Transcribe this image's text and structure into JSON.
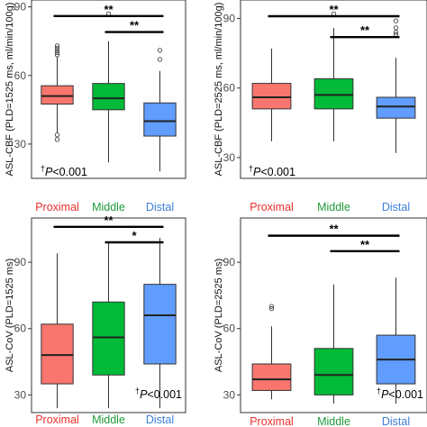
{
  "chart_data": [
    {
      "type": "box",
      "ylabel": "ASL-CBF (PLD=1525 ms, ml/min/100g)",
      "ylim": [
        15,
        93
      ],
      "yticks": [
        30,
        60,
        90
      ],
      "categories": [
        "Proximal",
        "Middle",
        "Distal"
      ],
      "category_colors": [
        "#e8302a",
        "#1e9a3a",
        "#3d7fd8"
      ],
      "box_fills": [
        "#f8766d",
        "#00ba38",
        "#619cff"
      ],
      "boxes": [
        {
          "whisker_low": 35,
          "q1": 47.5,
          "median": 51,
          "q3": 55.5,
          "whisker_high": 68,
          "outliers": [
            32,
            34,
            69,
            70,
            71,
            72,
            73
          ]
        },
        {
          "whisker_low": 22,
          "q1": 45,
          "median": 50,
          "q3": 56.5,
          "whisker_high": 75,
          "outliers": [
            87
          ]
        },
        {
          "whisker_low": 18,
          "q1": 33.5,
          "median": 40,
          "q3": 48,
          "whisker_high": 62,
          "outliers": [
            67,
            71
          ]
        }
      ],
      "significance": [
        {
          "label": "**",
          "from": 0,
          "to": 2,
          "y": 86
        },
        {
          "label": "**",
          "from": 1,
          "to": 2,
          "y": 79
        }
      ],
      "annotation": {
        "dagger": "†",
        "p": "P",
        "rest": "<0.001",
        "position": "bottom-left"
      }
    },
    {
      "type": "box",
      "ylabel": "ASL-CBF (PLD=2525 ms, ml/min/100g)",
      "ylim": [
        21,
        98
      ],
      "yticks": [
        30,
        60,
        90
      ],
      "categories": [
        "Proximal",
        "Middle",
        "Distal"
      ],
      "category_colors": [
        "#e8302a",
        "#1e9a3a",
        "#3d7fd8"
      ],
      "box_fills": [
        "#f8766d",
        "#00ba38",
        "#619cff"
      ],
      "boxes": [
        {
          "whisker_low": 37,
          "q1": 51,
          "median": 56,
          "q3": 62,
          "whisker_high": 77,
          "outliers": []
        },
        {
          "whisker_low": 37,
          "q1": 51,
          "median": 57,
          "q3": 64,
          "whisker_high": 86,
          "outliers": [
            92
          ]
        },
        {
          "whisker_low": 32,
          "q1": 47,
          "median": 52,
          "q3": 56,
          "whisker_high": 73,
          "outliers": [
            83,
            84,
            86,
            89
          ]
        }
      ],
      "significance": [
        {
          "label": "**",
          "from": 0,
          "to": 2,
          "y": 91
        },
        {
          "label": "**",
          "from": 1,
          "to": 2,
          "y": 82
        }
      ],
      "annotation": {
        "dagger": "†",
        "p": "P",
        "rest": "<0.001",
        "position": "bottom-left"
      }
    },
    {
      "type": "box",
      "ylabel": "ASL-CoV (PLD=1525 ms)",
      "ylim": [
        22,
        110
      ],
      "yticks": [
        30,
        60,
        90
      ],
      "categories": [
        "Proximal",
        "Middle",
        "Distal"
      ],
      "category_colors": [
        "#e8302a",
        "#1e9a3a",
        "#3d7fd8"
      ],
      "box_fills": [
        "#f8766d",
        "#00ba38",
        "#619cff"
      ],
      "boxes": [
        {
          "whisker_low": 24,
          "q1": 35,
          "median": 48,
          "q3": 62,
          "whisker_high": 94,
          "outliers": []
        },
        {
          "whisker_low": 24,
          "q1": 39,
          "median": 56,
          "q3": 72,
          "whisker_high": 99,
          "outliers": []
        },
        {
          "whisker_low": 24,
          "q1": 44,
          "median": 66,
          "q3": 80,
          "whisker_high": 101,
          "outliers": []
        }
      ],
      "significance": [
        {
          "label": "**",
          "from": 0,
          "to": 2,
          "y": 106
        },
        {
          "label": "*",
          "from": 1,
          "to": 2,
          "y": 99
        }
      ],
      "annotation": {
        "dagger": "†",
        "p": "P",
        "rest": "<0.001",
        "position": "bottom-right"
      }
    },
    {
      "type": "box",
      "ylabel": "ASL-CoV (PLD=2525 ms)",
      "ylim": [
        22,
        110
      ],
      "yticks": [
        30,
        60,
        90
      ],
      "categories": [
        "Proximal",
        "Middle",
        "Distal"
      ],
      "category_colors": [
        "#e8302a",
        "#1e9a3a",
        "#3d7fd8"
      ],
      "box_fills": [
        "#f8766d",
        "#00ba38",
        "#619cff"
      ],
      "boxes": [
        {
          "whisker_low": 28,
          "q1": 32,
          "median": 37,
          "q3": 44,
          "whisker_high": 61,
          "outliers": [
            69,
            70
          ]
        },
        {
          "whisker_low": 26,
          "q1": 30,
          "median": 39,
          "q3": 51,
          "whisker_high": 80,
          "outliers": []
        },
        {
          "whisker_low": 26,
          "q1": 35,
          "median": 46,
          "q3": 57,
          "whisker_high": 83,
          "outliers": []
        }
      ],
      "significance": [
        {
          "label": "**",
          "from": 0,
          "to": 2,
          "y": 102
        },
        {
          "label": "**",
          "from": 1,
          "to": 2,
          "y": 95
        }
      ],
      "annotation": {
        "dagger": "†",
        "p": "P",
        "rest": "<0.001",
        "position": "bottom-right"
      }
    }
  ]
}
